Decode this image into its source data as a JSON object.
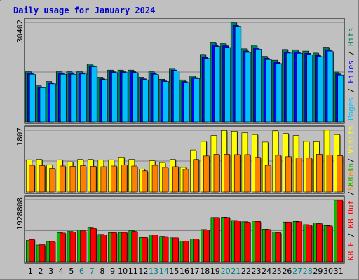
{
  "chart_data": {
    "type": "bar",
    "title": "Daily usage for January 2024",
    "categories": [
      "1",
      "2",
      "3",
      "4",
      "5",
      "6",
      "7",
      "8",
      "9",
      "10",
      "11",
      "12",
      "13",
      "14",
      "15",
      "16",
      "17",
      "18",
      "19",
      "20",
      "21",
      "22",
      "23",
      "24",
      "25",
      "26",
      "27",
      "28",
      "29",
      "30",
      "31"
    ],
    "weekend_days": [
      "6",
      "7",
      "13",
      "14",
      "20",
      "21",
      "27",
      "28"
    ],
    "grid": true,
    "colors": {
      "background": "#c0c0c0",
      "plot_background": "#c0c0c0",
      "title": "#0000cc",
      "day_label": "#000000",
      "weekend_label": "#008080",
      "hits": "#00805c",
      "files": "#0000ff",
      "pages": "#00c0ff",
      "visits": "#ffff00",
      "sites": "#ff8000",
      "kbin": "#00c000",
      "kbout": "#ff0000"
    },
    "panels": [
      {
        "id": "top",
        "ymax": 30402,
        "ymax_label": "30402",
        "legend": [
          {
            "text": "Hits",
            "color_key": "hits"
          },
          {
            "text": "Files",
            "color_key": "files"
          },
          {
            "text": "Pages",
            "color_key": "pages"
          }
        ],
        "legend_separator": "/",
        "series": [
          {
            "name": "Hits",
            "color_key": "hits",
            "values": [
              15300,
              11000,
              12300,
              15300,
              15300,
              15300,
              17700,
              13600,
              15800,
              15800,
              15800,
              13600,
              15300,
              13000,
              16300,
              12800,
              14000,
              20600,
              24300,
              24000,
              30400,
              22300,
              23400,
              20000,
              18800,
              22100,
              22000,
              21600,
              21000,
              22800,
              15200
            ]
          },
          {
            "name": "Files",
            "color_key": "files",
            "values": [
              14800,
              10600,
              11800,
              14800,
              14800,
              14800,
              17100,
              13100,
              15300,
              15300,
              15300,
              13100,
              14800,
              12500,
              15800,
              12300,
              13500,
              19700,
              23400,
              23200,
              29500,
              21600,
              22600,
              19400,
              18200,
              21300,
              21300,
              20900,
              20300,
              22000,
              14600
            ]
          },
          {
            "name": "Pages",
            "color_key": "pages",
            "values": [
              14500,
              10400,
              11600,
              14500,
              14500,
              14600,
              16800,
              12900,
              15000,
              15000,
              15000,
              12800,
              14500,
              12300,
              15500,
              12000,
              13200,
              19300,
              23000,
              22700,
              29200,
              21200,
              22200,
              19000,
              17800,
              21000,
              20900,
              20500,
              19900,
              21600,
              14300
            ]
          }
        ]
      },
      {
        "id": "middle",
        "ymax": 1807,
        "ymax_label": "1807",
        "legend": [
          {
            "text": "Visits",
            "color_key": "visits"
          },
          {
            "text": "Sites",
            "color_key": "sites"
          }
        ],
        "legend_separator": "/",
        "series": [
          {
            "name": "Visits",
            "color_key": "visits",
            "values": [
              940,
              950,
              790,
              940,
              880,
              950,
              950,
              930,
              940,
              1020,
              950,
              670,
              910,
              860,
              950,
              720,
              1230,
              1480,
              1650,
              1800,
              1780,
              1730,
              1680,
              1460,
              1790,
              1710,
              1650,
              1480,
              1470,
              1810,
              1680
            ]
          },
          {
            "name": "Sites",
            "color_key": "sites",
            "values": [
              780,
              770,
              690,
              760,
              750,
              770,
              750,
              740,
              760,
              790,
              760,
              620,
              780,
              720,
              740,
              660,
              950,
              1050,
              1100,
              1100,
              1090,
              1090,
              1010,
              780,
              1070,
              1030,
              1000,
              990,
              1100,
              1080,
              1060
            ]
          }
        ]
      },
      {
        "id": "bottom",
        "ymax": 1928808,
        "ymax_label": "1928808",
        "legend": [
          {
            "text": "KB In",
            "color_key": "kbin"
          },
          {
            "text": "KB Out",
            "color_key": "kbout"
          },
          {
            "text": "KB F",
            "color_key": "kbout"
          }
        ],
        "legend_separator": "/",
        "series": [
          {
            "name": "KB In",
            "color_key": "kbin",
            "values": [
              660000,
              520000,
              630000,
              900000,
              940000,
              980000,
              1070000,
              850000,
              900000,
              910000,
              960000,
              750000,
              830000,
              790000,
              740000,
              640000,
              700000,
              1000000,
              1370000,
              1380000,
              1280000,
              1240000,
              1260000,
              1010000,
              920000,
              1230000,
              1250000,
              1150000,
              1200000,
              1120000,
              1910000
            ]
          },
          {
            "name": "KB Out",
            "color_key": "kbout",
            "values": [
              690000,
              530000,
              630000,
              890000,
              920000,
              960000,
              1040000,
              830000,
              900000,
              910000,
              940000,
              750000,
              830000,
              780000,
              740000,
              640000,
              700000,
              990000,
              1370000,
              1370000,
              1270000,
              1230000,
              1250000,
              1000000,
              900000,
              1230000,
              1240000,
              1140000,
              1180000,
              1110000,
              1910000
            ]
          }
        ]
      }
    ]
  }
}
